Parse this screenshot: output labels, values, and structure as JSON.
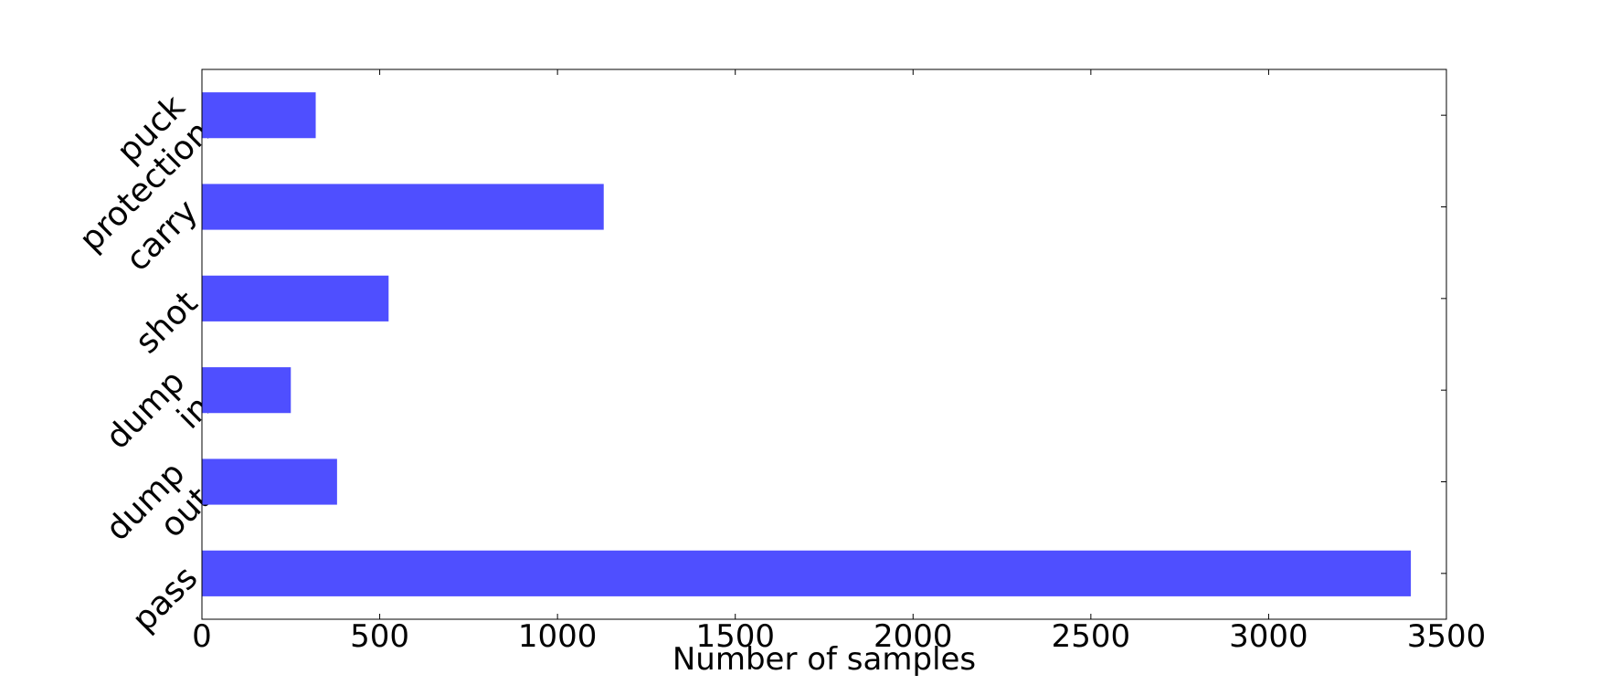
{
  "chart_data": {
    "type": "barh",
    "xlabel": "Number of samples",
    "categories": [
      "pass",
      "dump\nout",
      "dump\nin",
      "shot",
      "carry",
      "puck\nprotection"
    ],
    "values": [
      3400,
      380,
      250,
      525,
      1130,
      320
    ],
    "color": "#4f4fff",
    "xlim": [
      0,
      3500
    ],
    "xticks": [
      0,
      500,
      1000,
      1500,
      2000,
      2500,
      3000,
      3500
    ]
  }
}
